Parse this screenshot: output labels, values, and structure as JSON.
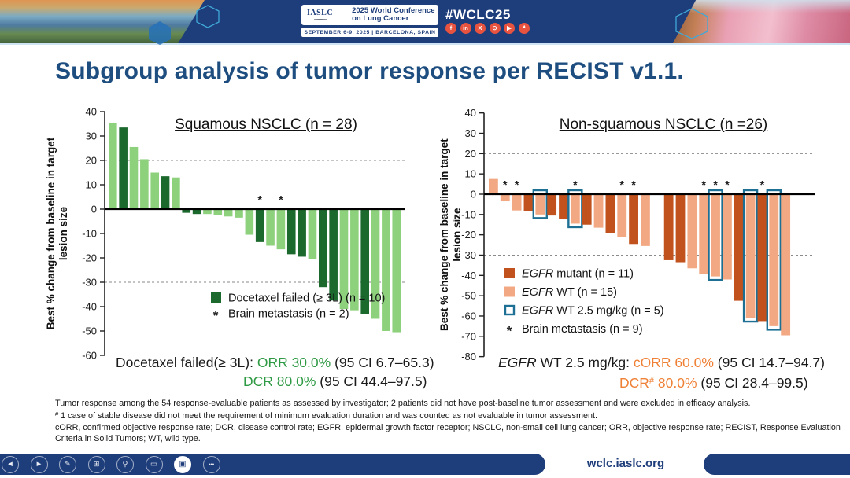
{
  "header": {
    "iaslc": "IASLC",
    "conf_line1": "2025 World Conference",
    "conf_line2": "on Lung Cancer",
    "date_line": "SEPTEMBER 6-9, 2025  |  BARCELONA, SPAIN",
    "hashtag": "#WCLC25",
    "social": [
      {
        "name": "facebook-icon",
        "glyph": "f"
      },
      {
        "name": "linkedin-icon",
        "glyph": "in"
      },
      {
        "name": "x-icon",
        "glyph": "X"
      },
      {
        "name": "instagram-icon",
        "glyph": "⊙"
      },
      {
        "name": "youtube-icon",
        "glyph": "▶"
      },
      {
        "name": "wechat-icon",
        "glyph": "❝"
      }
    ]
  },
  "slide": {
    "title": "Subgroup analysis of tumor response per RECIST v1.1."
  },
  "chart_data": [
    {
      "type": "bar",
      "title": "Squamous NSCLC (n = 28)",
      "ylabel_line1": "Best % change from baseline in target",
      "ylabel_line2": "lesion size",
      "ylim": [
        -60,
        40
      ],
      "yticks": [
        40,
        30,
        20,
        10,
        0,
        -10,
        -20,
        -30,
        -40,
        -50,
        -60
      ],
      "dashed_gridlines": [
        20,
        -30
      ],
      "grid": "dashed-reference-only",
      "legend_position": "inside-lower-left",
      "colors": {
        "dark": "#1b692d",
        "light": "#8ed17d",
        "outline": "#1d6f94"
      },
      "bars": [
        {
          "v": 35.5,
          "g": "light"
        },
        {
          "v": 33.5,
          "g": "dark"
        },
        {
          "v": 25.5,
          "g": "light"
        },
        {
          "v": 20.5,
          "g": "light"
        },
        {
          "v": 15,
          "g": "light"
        },
        {
          "v": 13.5,
          "g": "dark"
        },
        {
          "v": 13,
          "g": "light"
        },
        {
          "v": -1.5,
          "g": "dark"
        },
        {
          "v": -2,
          "g": "dark"
        },
        {
          "v": -2,
          "g": "light"
        },
        {
          "v": -2.5,
          "g": "light"
        },
        {
          "v": -3,
          "g": "light"
        },
        {
          "v": -3.5,
          "g": "light"
        },
        {
          "v": -10.5,
          "g": "light"
        },
        {
          "v": -13.5,
          "g": "dark",
          "star": true
        },
        {
          "v": -15,
          "g": "light"
        },
        {
          "v": -16.5,
          "g": "light",
          "star": true
        },
        {
          "v": -18.5,
          "g": "dark"
        },
        {
          "v": -19.5,
          "g": "dark"
        },
        {
          "v": -20.5,
          "g": "light"
        },
        {
          "v": -32,
          "g": "dark"
        },
        {
          "v": -37.5,
          "g": "dark"
        },
        {
          "v": -41,
          "g": "light"
        },
        {
          "v": -41.5,
          "g": "light"
        },
        {
          "v": -43,
          "g": "dark"
        },
        {
          "v": -45,
          "g": "light"
        },
        {
          "v": -50,
          "g": "light"
        },
        {
          "v": -50.5,
          "g": "light"
        }
      ],
      "legend": [
        {
          "marker": "dark",
          "italic": "",
          "label": "Docetaxel failed (≥ 3L) (n = 10)"
        },
        {
          "marker": "asterisk",
          "italic": "",
          "label": "Brain metastasis (n = 2)"
        }
      ],
      "result_lines": [
        {
          "segments": [
            {
              "t": "Docetaxel failed(≥ 3L): "
            },
            {
              "t": "ORR 30.0%",
              "c": "#2f9a44"
            },
            {
              "t": " (95 CI 6.7–65.3)"
            }
          ]
        },
        {
          "segments": [
            {
              "t": "DCR 80.0%",
              "c": "#2f9a44"
            },
            {
              "t": " (95 CI 44.4–97.5)"
            }
          ]
        }
      ]
    },
    {
      "type": "bar",
      "title": "Non-squamous NSCLC (n =26)",
      "ylabel_line1": "Best % change from baseline in target",
      "ylabel_line2": "lesion size",
      "ylim": [
        -80,
        40
      ],
      "yticks": [
        40,
        30,
        20,
        10,
        0,
        -10,
        -20,
        -30,
        -40,
        -50,
        -60,
        -70,
        -80
      ],
      "dashed_gridlines": [
        20,
        -30
      ],
      "grid": "dashed-reference-only",
      "legend_position": "inside-lower-left",
      "colors": {
        "dark": "#c1521d",
        "light": "#f2a983",
        "outline": "#1d6f94"
      },
      "bars": [
        {
          "v": 7.5,
          "g": "light"
        },
        {
          "v": -3.5,
          "g": "light",
          "star": true
        },
        {
          "v": -8,
          "g": "light",
          "star": true
        },
        {
          "v": -8.5,
          "g": "dark"
        },
        {
          "v": -10,
          "g": "light",
          "box": true
        },
        {
          "v": -10.5,
          "g": "dark"
        },
        {
          "v": -12,
          "g": "dark"
        },
        {
          "v": -14.5,
          "g": "light",
          "box": true,
          "star": true
        },
        {
          "v": -15,
          "g": "dark"
        },
        {
          "v": -16.5,
          "g": "light"
        },
        {
          "v": -19,
          "g": "dark"
        },
        {
          "v": -21,
          "g": "light",
          "star": true
        },
        {
          "v": -24.5,
          "g": "dark",
          "star": true
        },
        {
          "v": -25.5,
          "g": "light"
        },
        {
          "v": 0,
          "g": "dark"
        },
        {
          "v": -32.5,
          "g": "dark"
        },
        {
          "v": -33.5,
          "g": "dark"
        },
        {
          "v": -36.5,
          "g": "light"
        },
        {
          "v": -39.5,
          "g": "light",
          "star": true
        },
        {
          "v": -40.5,
          "g": "light",
          "box": true,
          "star": true
        },
        {
          "v": -42,
          "g": "light",
          "star": true
        },
        {
          "v": -52.5,
          "g": "dark"
        },
        {
          "v": -61,
          "g": "light",
          "box": true
        },
        {
          "v": -62.5,
          "g": "dark",
          "star": true
        },
        {
          "v": -65,
          "g": "light",
          "box": true
        },
        {
          "v": -69.5,
          "g": "light"
        }
      ],
      "legend": [
        {
          "marker": "dark",
          "italic": "EGFR",
          "label": " mutant (n = 11)"
        },
        {
          "marker": "light",
          "italic": "EGFR",
          "label": " WT (n = 15)"
        },
        {
          "marker": "outline",
          "italic": "EGFR",
          "label": " WT 2.5 mg/kg (n = 5)"
        },
        {
          "marker": "asterisk",
          "italic": "",
          "label": "Brain metastasis (n = 9)"
        }
      ],
      "result_lines": [
        {
          "segments": [
            {
              "t": "EGFR",
              "i": true
            },
            {
              "t": " WT 2.5 mg/kg: "
            },
            {
              "t": "cORR 60.0%",
              "c": "#ef8035"
            },
            {
              "t": " (95 CI 14.7–94.7)"
            }
          ]
        },
        {
          "segments": [
            {
              "t": "DCR",
              "c": "#ef8035"
            },
            {
              "t": "#",
              "c": "#ef8035",
              "sup": true
            },
            {
              "t": " 80.0%",
              "c": "#ef8035"
            },
            {
              "t": " (95 CI 28.4–99.5)"
            }
          ]
        }
      ]
    }
  ],
  "footnotes": [
    {
      "sup": "",
      "text": "Tumor response among the 54 response-evaluable patients as assessed by investigator; 2 patients did not have post-baseline tumor assessment and were excluded in efficacy analysis."
    },
    {
      "sup": "#",
      "text": " 1 case of stable disease did not meet the requirement of minimum evaluation duration and was counted as not evaluable in tumor assessment."
    },
    {
      "sup": "",
      "text": "cORR, confirmed objective response rate; DCR, disease control rate; EGFR, epidermal growth factor receptor; NSCLC, non-small cell lung cancer; ORR, objective response rate; RECIST, Response Evaluation"
    },
    {
      "sup": "",
      "text": "Criteria in Solid Tumors; WT, wild type."
    }
  ],
  "footer": {
    "url": "wclc.iaslc.org",
    "controls": [
      {
        "name": "previous",
        "glyph": "◄"
      },
      {
        "name": "next",
        "glyph": "►"
      },
      {
        "name": "pen",
        "glyph": "✎"
      },
      {
        "name": "see-all-slides",
        "glyph": "⊞"
      },
      {
        "name": "zoom",
        "glyph": "⚲"
      },
      {
        "name": "subtitles",
        "glyph": "▭"
      },
      {
        "name": "camera",
        "glyph": "▣",
        "active": true
      },
      {
        "name": "more",
        "glyph": "•••"
      }
    ]
  }
}
